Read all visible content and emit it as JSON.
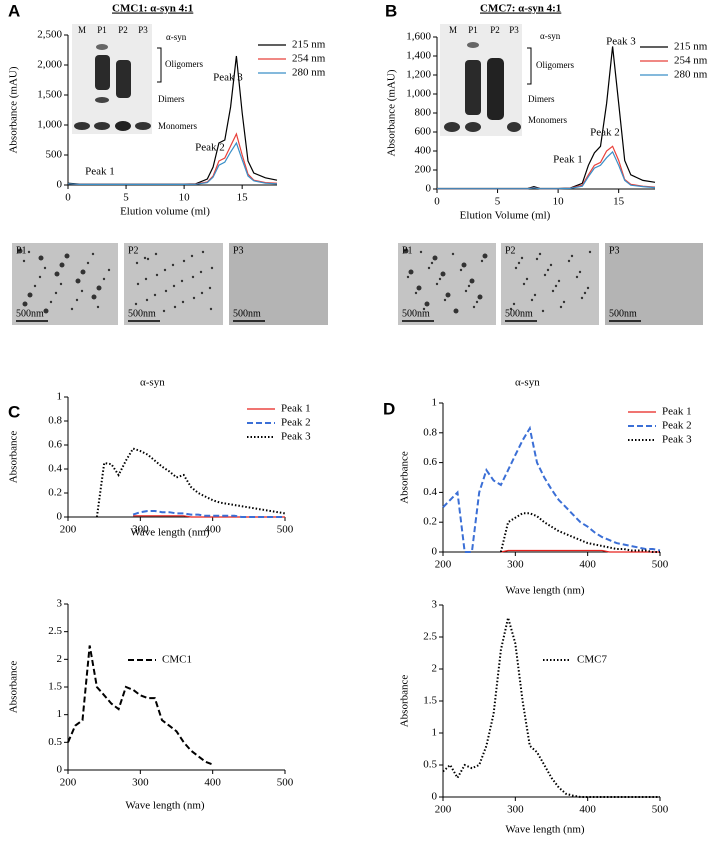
{
  "chart_data": [
    {
      "type": "line",
      "panel": "A",
      "title": "CMC1: α-syn 4:1",
      "x_label": "Elution volume (ml)",
      "y_label": "Absorbance (mAU)",
      "x": [
        0,
        1,
        2,
        3,
        4,
        5,
        6,
        7,
        7.5,
        8,
        8.5,
        9,
        10,
        11,
        12,
        12.5,
        13,
        13.5,
        14,
        14.5,
        15,
        15.5,
        16,
        17,
        18
      ],
      "series": [
        {
          "name": "215 nm",
          "color": "#000000",
          "dash": "solid",
          "values": [
            30,
            15,
            15,
            15,
            15,
            15,
            15,
            15,
            15,
            15,
            15,
            15,
            15,
            20,
            100,
            300,
            700,
            750,
            1300,
            2150,
            1200,
            400,
            200,
            120,
            80
          ]
        },
        {
          "name": "254 nm",
          "color": "#e8403a",
          "dash": "solid",
          "values": [
            20,
            10,
            10,
            10,
            10,
            10,
            10,
            10,
            10,
            10,
            10,
            10,
            10,
            15,
            50,
            150,
            400,
            450,
            650,
            850,
            500,
            180,
            80,
            40,
            30
          ]
        },
        {
          "name": "280 nm",
          "color": "#3a8fc8",
          "dash": "solid",
          "values": [
            20,
            10,
            10,
            10,
            10,
            10,
            10,
            10,
            10,
            10,
            10,
            10,
            10,
            12,
            40,
            130,
            330,
            380,
            550,
            700,
            420,
            150,
            70,
            30,
            20
          ]
        }
      ],
      "xlim": [
        0,
        18
      ],
      "xticks": [
        0,
        5,
        10,
        15
      ],
      "ylim": [
        0,
        2500
      ],
      "yticks": [
        0,
        500,
        {
          "value": 1000,
          "label": "1,000"
        },
        {
          "value": 1500,
          "label": "1,500"
        },
        {
          "value": 2000,
          "label": "2,000"
        },
        {
          "value": 2500,
          "label": "2,500"
        }
      ],
      "legend": "upper right",
      "annotations": [
        "Peak 1",
        "Peak 2",
        "Peak 3"
      ],
      "inset": {
        "lanes": [
          "M",
          "P1",
          "P2",
          "P3"
        ],
        "protein": "α-syn",
        "bands": [
          "Oligomers",
          "Dimers",
          "Monomers"
        ]
      },
      "tem": {
        "labels": [
          "P1",
          "P2",
          "P3"
        ],
        "scale_bar": "500nm"
      }
    },
    {
      "type": "line",
      "panel": "B",
      "title": "CMC7: α-syn 4:1",
      "x_label": "Elution Volume (ml)",
      "y_label": "Absorbance (mAU)",
      "x": [
        0,
        1,
        2,
        3,
        4,
        5,
        6,
        7,
        7.5,
        8,
        8.5,
        9,
        10,
        11,
        12,
        12.5,
        13,
        13.5,
        14,
        14.5,
        15,
        15.5,
        16,
        17,
        18
      ],
      "series": [
        {
          "name": "215 nm",
          "color": "#000000",
          "dash": "solid",
          "values": [
            5,
            5,
            5,
            5,
            5,
            5,
            5,
            5,
            5,
            25,
            5,
            5,
            5,
            10,
            60,
            250,
            380,
            450,
            900,
            1500,
            900,
            300,
            150,
            90,
            70
          ]
        },
        {
          "name": "254 nm",
          "color": "#e8403a",
          "dash": "solid",
          "values": [
            3,
            3,
            3,
            3,
            3,
            3,
            3,
            3,
            3,
            15,
            3,
            3,
            3,
            8,
            40,
            150,
            250,
            280,
            400,
            450,
            300,
            100,
            50,
            30,
            20
          ]
        },
        {
          "name": "280 nm",
          "color": "#3a8fc8",
          "dash": "solid",
          "values": [
            3,
            3,
            3,
            3,
            3,
            3,
            3,
            3,
            3,
            12,
            3,
            3,
            3,
            6,
            30,
            130,
            220,
            250,
            330,
            390,
            250,
            90,
            40,
            25,
            15
          ]
        }
      ],
      "xlim": [
        0,
        18
      ],
      "xticks": [
        0,
        5,
        10,
        15
      ],
      "ylim": [
        0,
        1600
      ],
      "yticks": [
        0,
        200,
        400,
        600,
        800,
        {
          "value": 1000,
          "label": "1,000"
        },
        {
          "value": 1200,
          "label": "1,200"
        },
        {
          "value": 1400,
          "label": "1,400"
        },
        {
          "value": 1600,
          "label": "1,600"
        }
      ],
      "legend": "upper right",
      "annotations": [
        "Peak 1",
        "Peak 2",
        "Peak 3"
      ],
      "inset": {
        "lanes": [
          "M",
          "P1",
          "P2",
          "P3"
        ],
        "protein": "α-syn",
        "bands": [
          "Oligomers",
          "Dimers",
          "Monomers"
        ]
      },
      "tem": {
        "labels": [
          "P1",
          "P2",
          "P3"
        ],
        "scale_bar": "500nm"
      }
    },
    {
      "type": "line",
      "panel": "C",
      "title": "α-syn",
      "x_label": "Wave length (nm)",
      "y_label": "Absorbance",
      "x": [
        200,
        210,
        220,
        230,
        240,
        250,
        260,
        270,
        280,
        290,
        300,
        310,
        320,
        330,
        340,
        350,
        360,
        370,
        380,
        390,
        400,
        410,
        420,
        430,
        440,
        450,
        460,
        470,
        480,
        490,
        500
      ],
      "series": [
        {
          "name": "Peak 1",
          "color": "#e8201c",
          "dash": "solid",
          "values": [
            null,
            null,
            null,
            null,
            null,
            null,
            null,
            null,
            null,
            0.01,
            0.01,
            0.01,
            0.01,
            0.01,
            0.01,
            0.01,
            0.01,
            0,
            0,
            0,
            0,
            0,
            0,
            0,
            0,
            0,
            0,
            0,
            0,
            0,
            0
          ]
        },
        {
          "name": "Peak 2",
          "color": "#3b6fd6",
          "dash": "dashed",
          "values": [
            null,
            null,
            null,
            null,
            null,
            null,
            null,
            null,
            null,
            0.02,
            0.04,
            0.05,
            0.05,
            0.04,
            0.04,
            0.03,
            0.03,
            0.02,
            0.02,
            0.01,
            0.01,
            0.01,
            0.01,
            0.01,
            0,
            0,
            0,
            0,
            0,
            0,
            0
          ]
        },
        {
          "name": "Peak 3",
          "color": "#000000",
          "dash": "dotted",
          "values": [
            null,
            null,
            null,
            null,
            0,
            0.45,
            0.44,
            0.35,
            0.47,
            0.57,
            0.55,
            0.52,
            0.47,
            0.42,
            0.38,
            0.33,
            0.35,
            0.25,
            0.2,
            0.17,
            0.14,
            0.12,
            0.11,
            0.1,
            0.09,
            0.08,
            0.07,
            0.06,
            0.05,
            0.04,
            0.03
          ]
        }
      ],
      "xlim": [
        200,
        500
      ],
      "xticks": [
        200,
        300,
        400,
        500
      ],
      "ylim": [
        0,
        1
      ],
      "yticks": [
        0,
        0.2,
        0.4,
        0.6,
        0.8,
        1
      ],
      "legend": "upper right"
    },
    {
      "type": "line",
      "panel": "D",
      "title": "α-syn",
      "x_label": "Wave length (nm)",
      "y_label": "Absorbance",
      "x": [
        200,
        210,
        220,
        230,
        240,
        250,
        260,
        270,
        280,
        290,
        300,
        310,
        320,
        330,
        340,
        350,
        360,
        370,
        380,
        390,
        400,
        410,
        420,
        430,
        440,
        450,
        460,
        470,
        480,
        490,
        500
      ],
      "series": [
        {
          "name": "Peak 1",
          "color": "#e8201c",
          "dash": "solid",
          "values": [
            null,
            null,
            null,
            null,
            null,
            null,
            null,
            null,
            0,
            0.01,
            0.01,
            0.01,
            0.01,
            0.01,
            0.01,
            0.01,
            0.01,
            0.01,
            0.01,
            0.01,
            0.01,
            0.01,
            0.01,
            0,
            0,
            0,
            0,
            0,
            0,
            0,
            0
          ]
        },
        {
          "name": "Peak 2",
          "color": "#3b6fd6",
          "dash": "dashed",
          "values": [
            0.3,
            0.35,
            0.4,
            0,
            0,
            0.4,
            0.55,
            0.48,
            0.45,
            0.55,
            0.65,
            0.75,
            0.83,
            0.6,
            0.5,
            0.42,
            0.35,
            0.3,
            0.25,
            0.2,
            0.17,
            0.13,
            0.1,
            0.08,
            0.06,
            0.05,
            0.04,
            0.03,
            0.02,
            0.02,
            0.01
          ]
        },
        {
          "name": "Peak 3",
          "color": "#000000",
          "dash": "dotted",
          "values": [
            null,
            null,
            null,
            null,
            null,
            null,
            null,
            null,
            0,
            0.2,
            0.23,
            0.26,
            0.26,
            0.24,
            0.2,
            0.17,
            0.14,
            0.12,
            0.1,
            0.08,
            0.06,
            0.05,
            0.04,
            0.03,
            0.02,
            0.02,
            0.01,
            0.01,
            0.01,
            0,
            0
          ]
        }
      ],
      "xlim": [
        200,
        500
      ],
      "xticks": [
        200,
        300,
        400,
        500
      ],
      "ylim": [
        0,
        1
      ],
      "yticks": [
        0,
        0.2,
        0.4,
        0.6,
        0.8,
        1
      ],
      "legend": "upper right"
    },
    {
      "type": "line",
      "x_label": "Wave length (nm)",
      "y_label": "Absorbance",
      "x": [
        200,
        210,
        220,
        230,
        240,
        250,
        260,
        270,
        280,
        290,
        300,
        310,
        320,
        330,
        340,
        350,
        360,
        370,
        380,
        390,
        400
      ],
      "series": [
        {
          "name": "CMC1",
          "color": "#000000",
          "dash": "dashed",
          "values": [
            0.5,
            0.8,
            0.9,
            2.25,
            1.5,
            1.35,
            1.2,
            1.1,
            1.5,
            1.45,
            1.35,
            1.3,
            1.3,
            0.9,
            0.8,
            0.7,
            0.5,
            0.35,
            0.25,
            0.15,
            0.1
          ]
        }
      ],
      "xlim": [
        200,
        500
      ],
      "xticks": [
        200,
        300,
        400,
        500
      ],
      "ylim": [
        0,
        3
      ],
      "yticks": [
        0,
        0.5,
        1,
        1.5,
        2,
        2.5,
        3
      ],
      "legend": "upper left"
    },
    {
      "type": "line",
      "x_label": "Wave length (nm)",
      "y_label": "Absorbance",
      "x": [
        200,
        210,
        220,
        230,
        240,
        250,
        260,
        270,
        280,
        290,
        300,
        310,
        320,
        330,
        340,
        350,
        360,
        370,
        380,
        390,
        400,
        410,
        420,
        430,
        440,
        450,
        460,
        470,
        480,
        490,
        500
      ],
      "series": [
        {
          "name": "CMC7",
          "color": "#000000",
          "dash": "dotted",
          "values": [
            0.4,
            0.5,
            0.3,
            0.5,
            0.45,
            0.5,
            0.8,
            1.3,
            2.3,
            2.8,
            2.4,
            1.5,
            0.8,
            0.7,
            0.5,
            0.3,
            0.15,
            0.05,
            0.02,
            0,
            0,
            0,
            0,
            0,
            0,
            0,
            0,
            0,
            0,
            0,
            0
          ]
        }
      ],
      "xlim": [
        200,
        500
      ],
      "xticks": [
        200,
        300,
        400,
        500
      ],
      "ylim": [
        0,
        3
      ],
      "yticks": [
        0,
        0.5,
        1,
        1.5,
        2,
        2.5,
        3
      ],
      "legend": "upper left"
    }
  ]
}
